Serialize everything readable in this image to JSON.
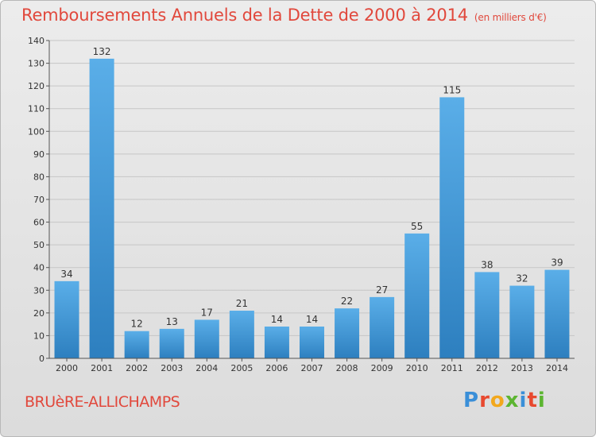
{
  "header": {
    "title": "Remboursements Annuels de la Dette de 2000 à 2014",
    "unit": "(en milliers d'€)"
  },
  "footer": {
    "commune": "BRUèRE-ALLICHAMPS",
    "logo_text": "Proxiti",
    "logo_colors": [
      "#3a8fd8",
      "#e8492f",
      "#f2a81d",
      "#5cb531",
      "#3a8fd8",
      "#e8492f",
      "#5cb531"
    ]
  },
  "colors": {
    "bar_top": "#5aaee8",
    "bar_bottom": "#2d7fbf",
    "title": "#e1483c"
  },
  "chart_data": {
    "type": "bar",
    "title": "Remboursements Annuels de la Dette de 2000 à 2014",
    "xlabel": "",
    "ylabel": "",
    "categories": [
      "2000",
      "2001",
      "2002",
      "2003",
      "2004",
      "2005",
      "2006",
      "2007",
      "2008",
      "2009",
      "2010",
      "2011",
      "2012",
      "2013",
      "2014"
    ],
    "values": [
      34,
      132,
      12,
      13,
      17,
      21,
      14,
      14,
      22,
      27,
      55,
      115,
      38,
      32,
      39
    ],
    "ylim": [
      0,
      140
    ],
    "yticks": [
      0,
      10,
      20,
      30,
      40,
      50,
      60,
      70,
      80,
      90,
      100,
      110,
      120,
      130,
      140
    ],
    "grid": true,
    "legend": "none"
  }
}
